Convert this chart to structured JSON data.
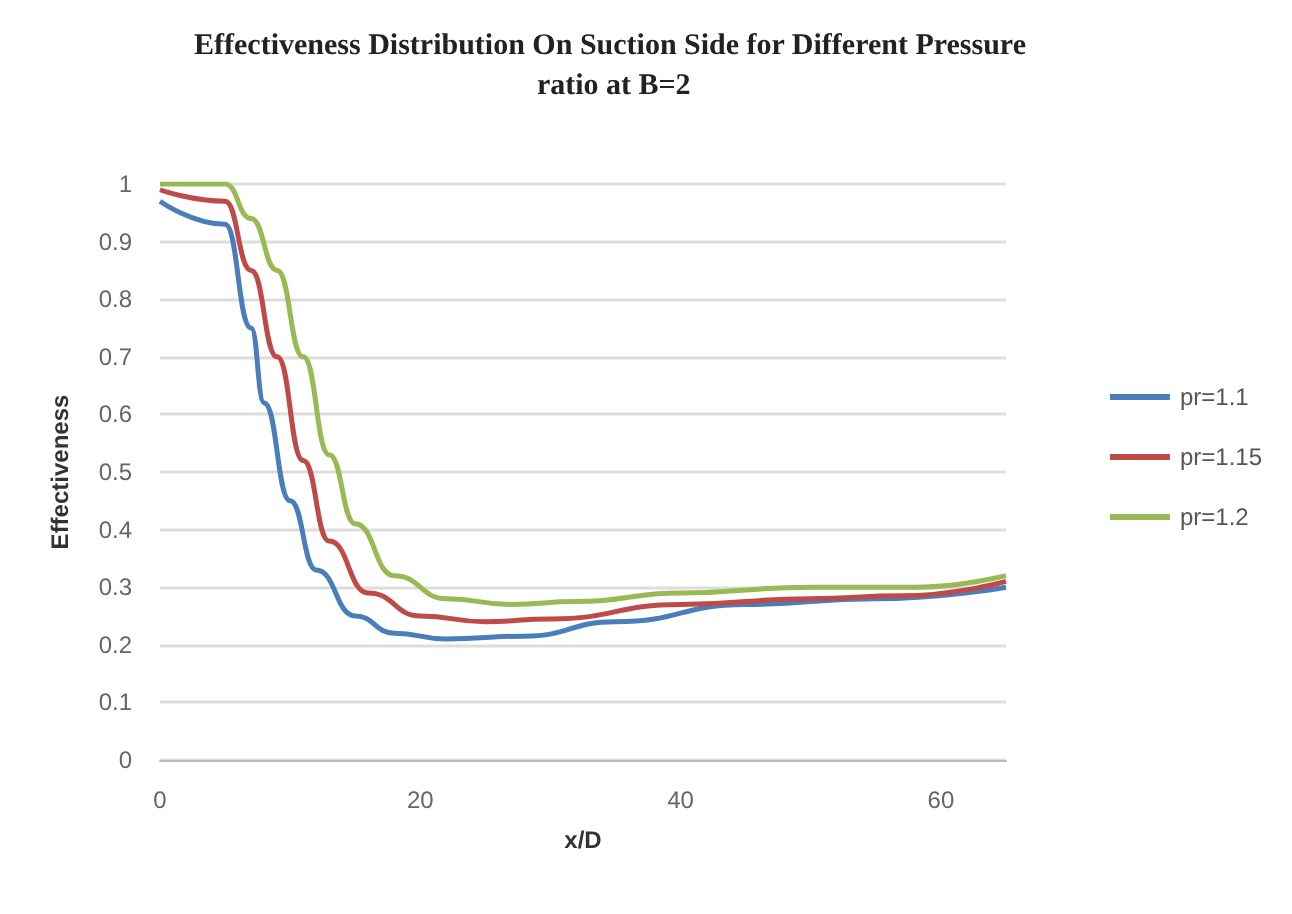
{
  "chart_data": {
    "type": "line",
    "title": "Effectiveness Distribution On Suction Side for Different Pressure ratio at B=2",
    "xlabel": "x/D",
    "ylabel": "Effectiveness",
    "xlim": [
      0,
      65
    ],
    "xticks": [
      0,
      20,
      40,
      60
    ],
    "ylim": [
      0,
      1
    ],
    "yticks": [
      0,
      0.1,
      0.2,
      0.3,
      0.4,
      0.5,
      0.6,
      0.7,
      0.8,
      0.9,
      1
    ],
    "grid": "y",
    "legend": "right",
    "marker": "none",
    "line_style": "solid",
    "series": [
      {
        "name": "pr=1.1",
        "color": "#4a7ebb",
        "x": [
          0,
          5,
          7,
          8,
          10,
          12,
          15,
          18,
          22,
          28,
          35,
          45,
          55,
          65
        ],
        "values": [
          0.97,
          0.93,
          0.75,
          0.62,
          0.45,
          0.33,
          0.25,
          0.22,
          0.21,
          0.215,
          0.24,
          0.27,
          0.28,
          0.3
        ]
      },
      {
        "name": "pr=1.15",
        "color": "#be4b48",
        "x": [
          0,
          5,
          7,
          9,
          11,
          13,
          16,
          20,
          25,
          30,
          40,
          50,
          57,
          65
        ],
        "values": [
          0.99,
          0.97,
          0.85,
          0.7,
          0.52,
          0.38,
          0.29,
          0.25,
          0.24,
          0.245,
          0.27,
          0.28,
          0.285,
          0.31
        ]
      },
      {
        "name": "pr=1.2",
        "color": "#98b954",
        "x": [
          0,
          5,
          7,
          9,
          11,
          13,
          15,
          18,
          22,
          27,
          32,
          40,
          50,
          58,
          65
        ],
        "values": [
          1,
          1,
          0.94,
          0.85,
          0.7,
          0.53,
          0.41,
          0.32,
          0.28,
          0.27,
          0.275,
          0.29,
          0.3,
          0.3,
          0.32
        ]
      }
    ]
  }
}
